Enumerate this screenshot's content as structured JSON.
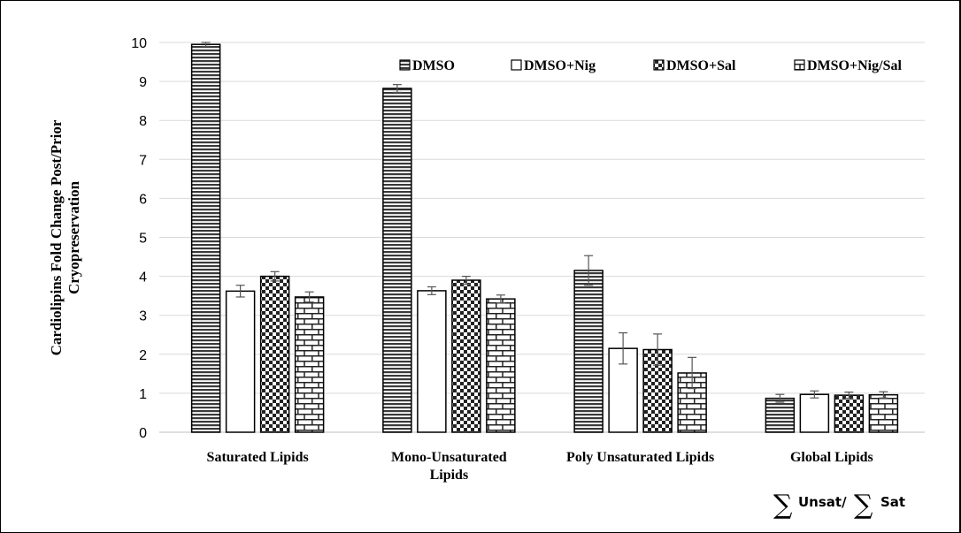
{
  "chart_data": {
    "type": "bar",
    "title": "",
    "ylabel_line1": "Cardiolipins Fold Change Post/Prior",
    "ylabel_line2": "Cryopreservation",
    "xlabel": "",
    "ylim": [
      0,
      10
    ],
    "yticks": [
      "0",
      "1",
      "2",
      "3",
      "4",
      "5",
      "6",
      "7",
      "8",
      "9",
      "10"
    ],
    "grid": true,
    "legend_position": "top",
    "categories": [
      "Saturated Lipids",
      "Mono-Unsaturated Lipids",
      "Poly Unsaturated Lipids",
      "Global Lipids"
    ],
    "category_labels": [
      [
        "Saturated Lipids"
      ],
      [
        "Mono-Unsaturated",
        "Lipids"
      ],
      [
        "Poly Unsaturated Lipids"
      ],
      [
        "Global Lipids"
      ]
    ],
    "annotation": {
      "sigma": "∑",
      "unsat": "Unsat/",
      "sat": "Sat"
    },
    "series": [
      {
        "name": "DMSO",
        "pattern": "horizontal-lines",
        "values": [
          9.95,
          8.82,
          4.15,
          0.87
        ],
        "errors": [
          0.05,
          0.1,
          0.38,
          0.1
        ]
      },
      {
        "name": "DMSO+Nig",
        "pattern": "white",
        "values": [
          3.62,
          3.63,
          2.15,
          0.97
        ],
        "errors": [
          0.15,
          0.1,
          0.4,
          0.09
        ]
      },
      {
        "name": "DMSO+Sal",
        "pattern": "checker",
        "values": [
          4.0,
          3.9,
          2.12,
          0.95
        ],
        "errors": [
          0.12,
          0.1,
          0.4,
          0.08
        ]
      },
      {
        "name": "DMSO+Nig/Sal",
        "pattern": "brick",
        "values": [
          3.47,
          3.42,
          1.52,
          0.96
        ],
        "errors": [
          0.13,
          0.1,
          0.4,
          0.08
        ]
      }
    ]
  }
}
